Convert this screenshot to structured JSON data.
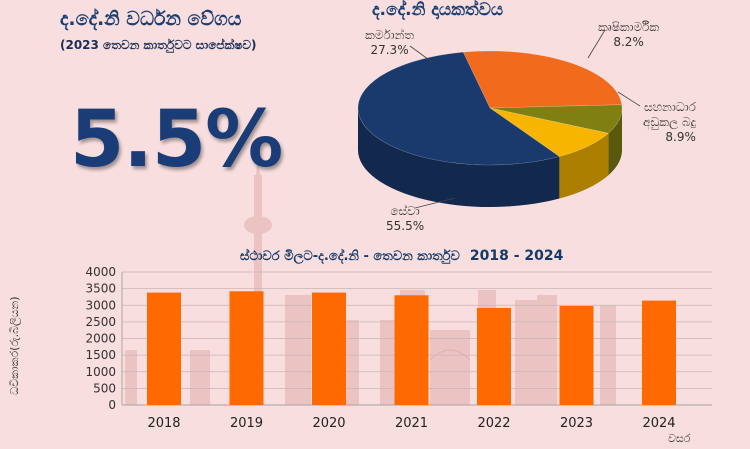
{
  "growth": {
    "title": "ද.දේ.නි වර්ධන වේගය",
    "subtitle": "(2023 තෙවන කාර්තුවට සාපේක්ෂව)",
    "value": "5.5%"
  },
  "pie": {
    "title": "ද.දේ.නි දායකත්වය",
    "slices": [
      {
        "name": "කර්මාන්ත",
        "value": 27.3,
        "pct_label": "27.3%",
        "color": "#f26a1b"
      },
      {
        "name": "කෘෂිකාර්මික",
        "value": 8.2,
        "pct_label": "8.2%",
        "color": "#7f7f12"
      },
      {
        "name": "සහනාධාර අඩුකල බදු",
        "value": 8.9,
        "pct_label": "8.9%",
        "color": "#f7b500"
      },
      {
        "name": "සේවා",
        "value": 55.5,
        "pct_label": "55.5%",
        "color": "#1a3a6e"
      }
    ],
    "label_lines": {
      "industry": "කර්මාන්ත",
      "agriculture": "කෘෂිකාර්මික",
      "taxes_line1": "සහනාධාර",
      "taxes_line2": "අඩුකල බදු",
      "services": "සේවා"
    }
  },
  "bar_title": "ස්ථාවර මිලට-ද.දේ.නි - තෙවන කාර්තුව",
  "bar_title_years": "2018 - 2024",
  "chart_data": [
    {
      "type": "bar",
      "title": "ස්ථාවර මිලට-ද.දේ.නි - තෙවන කාර්තුව 2018 - 2024",
      "xlabel": "වසර",
      "ylabel": "ධවිකාකර(රු.බිලියන)",
      "categories": [
        "2018",
        "2019",
        "2020",
        "2021",
        "2022",
        "2023",
        "2024"
      ],
      "values": [
        3380,
        3420,
        3380,
        3300,
        2920,
        2980,
        3140
      ],
      "ylim": [
        0,
        4000
      ],
      "yticks": [
        0,
        500,
        1000,
        1500,
        2000,
        2500,
        3000,
        3500,
        4000
      ],
      "bar_color": "#ff6a00",
      "grid": true
    },
    {
      "type": "pie",
      "title": "ද.දේ.නි දායකත්වය",
      "categories": [
        "කර්මාන්ත",
        "කෘෂිකාර්මික",
        "සහනාධාර අඩුකල බදු",
        "සේවා"
      ],
      "values": [
        27.3,
        8.2,
        8.9,
        55.5
      ]
    }
  ]
}
